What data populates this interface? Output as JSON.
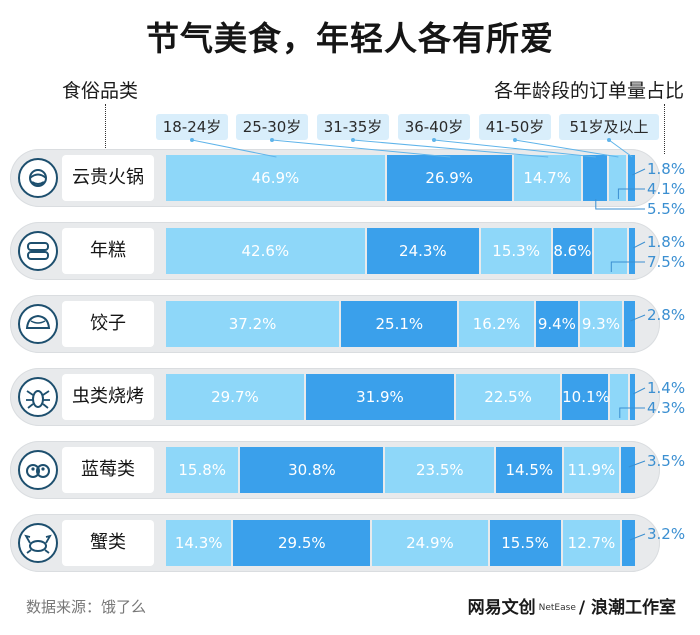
{
  "title": "节气美食，年轻人各有所爱",
  "header": {
    "left": "食俗品类",
    "right": "各年龄段的订单量占比"
  },
  "legend": [
    "18-24岁",
    "25-30岁",
    "31-35岁",
    "36-40岁",
    "41-50岁",
    "51岁及以上"
  ],
  "colors": {
    "seg": [
      "#8ed7f9",
      "#3aa0eb",
      "#8ed7f9",
      "#3aa0eb",
      "#8ed7f9",
      "#3aa0eb"
    ],
    "label_text": "#ffffff",
    "outside_label": "#3b8fd1",
    "legend_bg": "#d9eefb",
    "icon_stroke": "#1d4f6e"
  },
  "chart_data": {
    "type": "bar",
    "orientation": "horizontal",
    "stacked": true,
    "categories": [
      "云贵火锅",
      "年糕",
      "饺子",
      "虫类烧烤",
      "蓝莓类",
      "蟹类"
    ],
    "series": [
      {
        "name": "18-24岁",
        "values": [
          46.9,
          42.6,
          37.2,
          29.7,
          15.8,
          14.3
        ]
      },
      {
        "name": "25-30岁",
        "values": [
          26.9,
          24.3,
          25.1,
          31.9,
          30.8,
          29.5
        ]
      },
      {
        "name": "31-35岁",
        "values": [
          14.7,
          15.3,
          16.2,
          22.5,
          23.5,
          24.9
        ]
      },
      {
        "name": "36-40岁",
        "values": [
          5.5,
          8.6,
          9.4,
          10.1,
          14.5,
          15.5
        ]
      },
      {
        "name": "41-50岁",
        "values": [
          4.1,
          7.5,
          9.3,
          4.3,
          11.9,
          12.7
        ]
      },
      {
        "name": "51岁及以上",
        "values": [
          1.8,
          1.8,
          2.8,
          1.4,
          3.5,
          3.2
        ]
      }
    ],
    "xlim": [
      0,
      100
    ]
  },
  "row_icons": [
    "hotpot-icon",
    "niangao-icon",
    "dumpling-icon",
    "insect-icon",
    "blueberry-icon",
    "crab-icon"
  ],
  "footer": {
    "source": "数据来源：饿了么",
    "logo_main": "网易文创",
    "logo_small": "NetEase",
    "logo_sep": "/",
    "logo_studio": "浪潮工作室"
  }
}
